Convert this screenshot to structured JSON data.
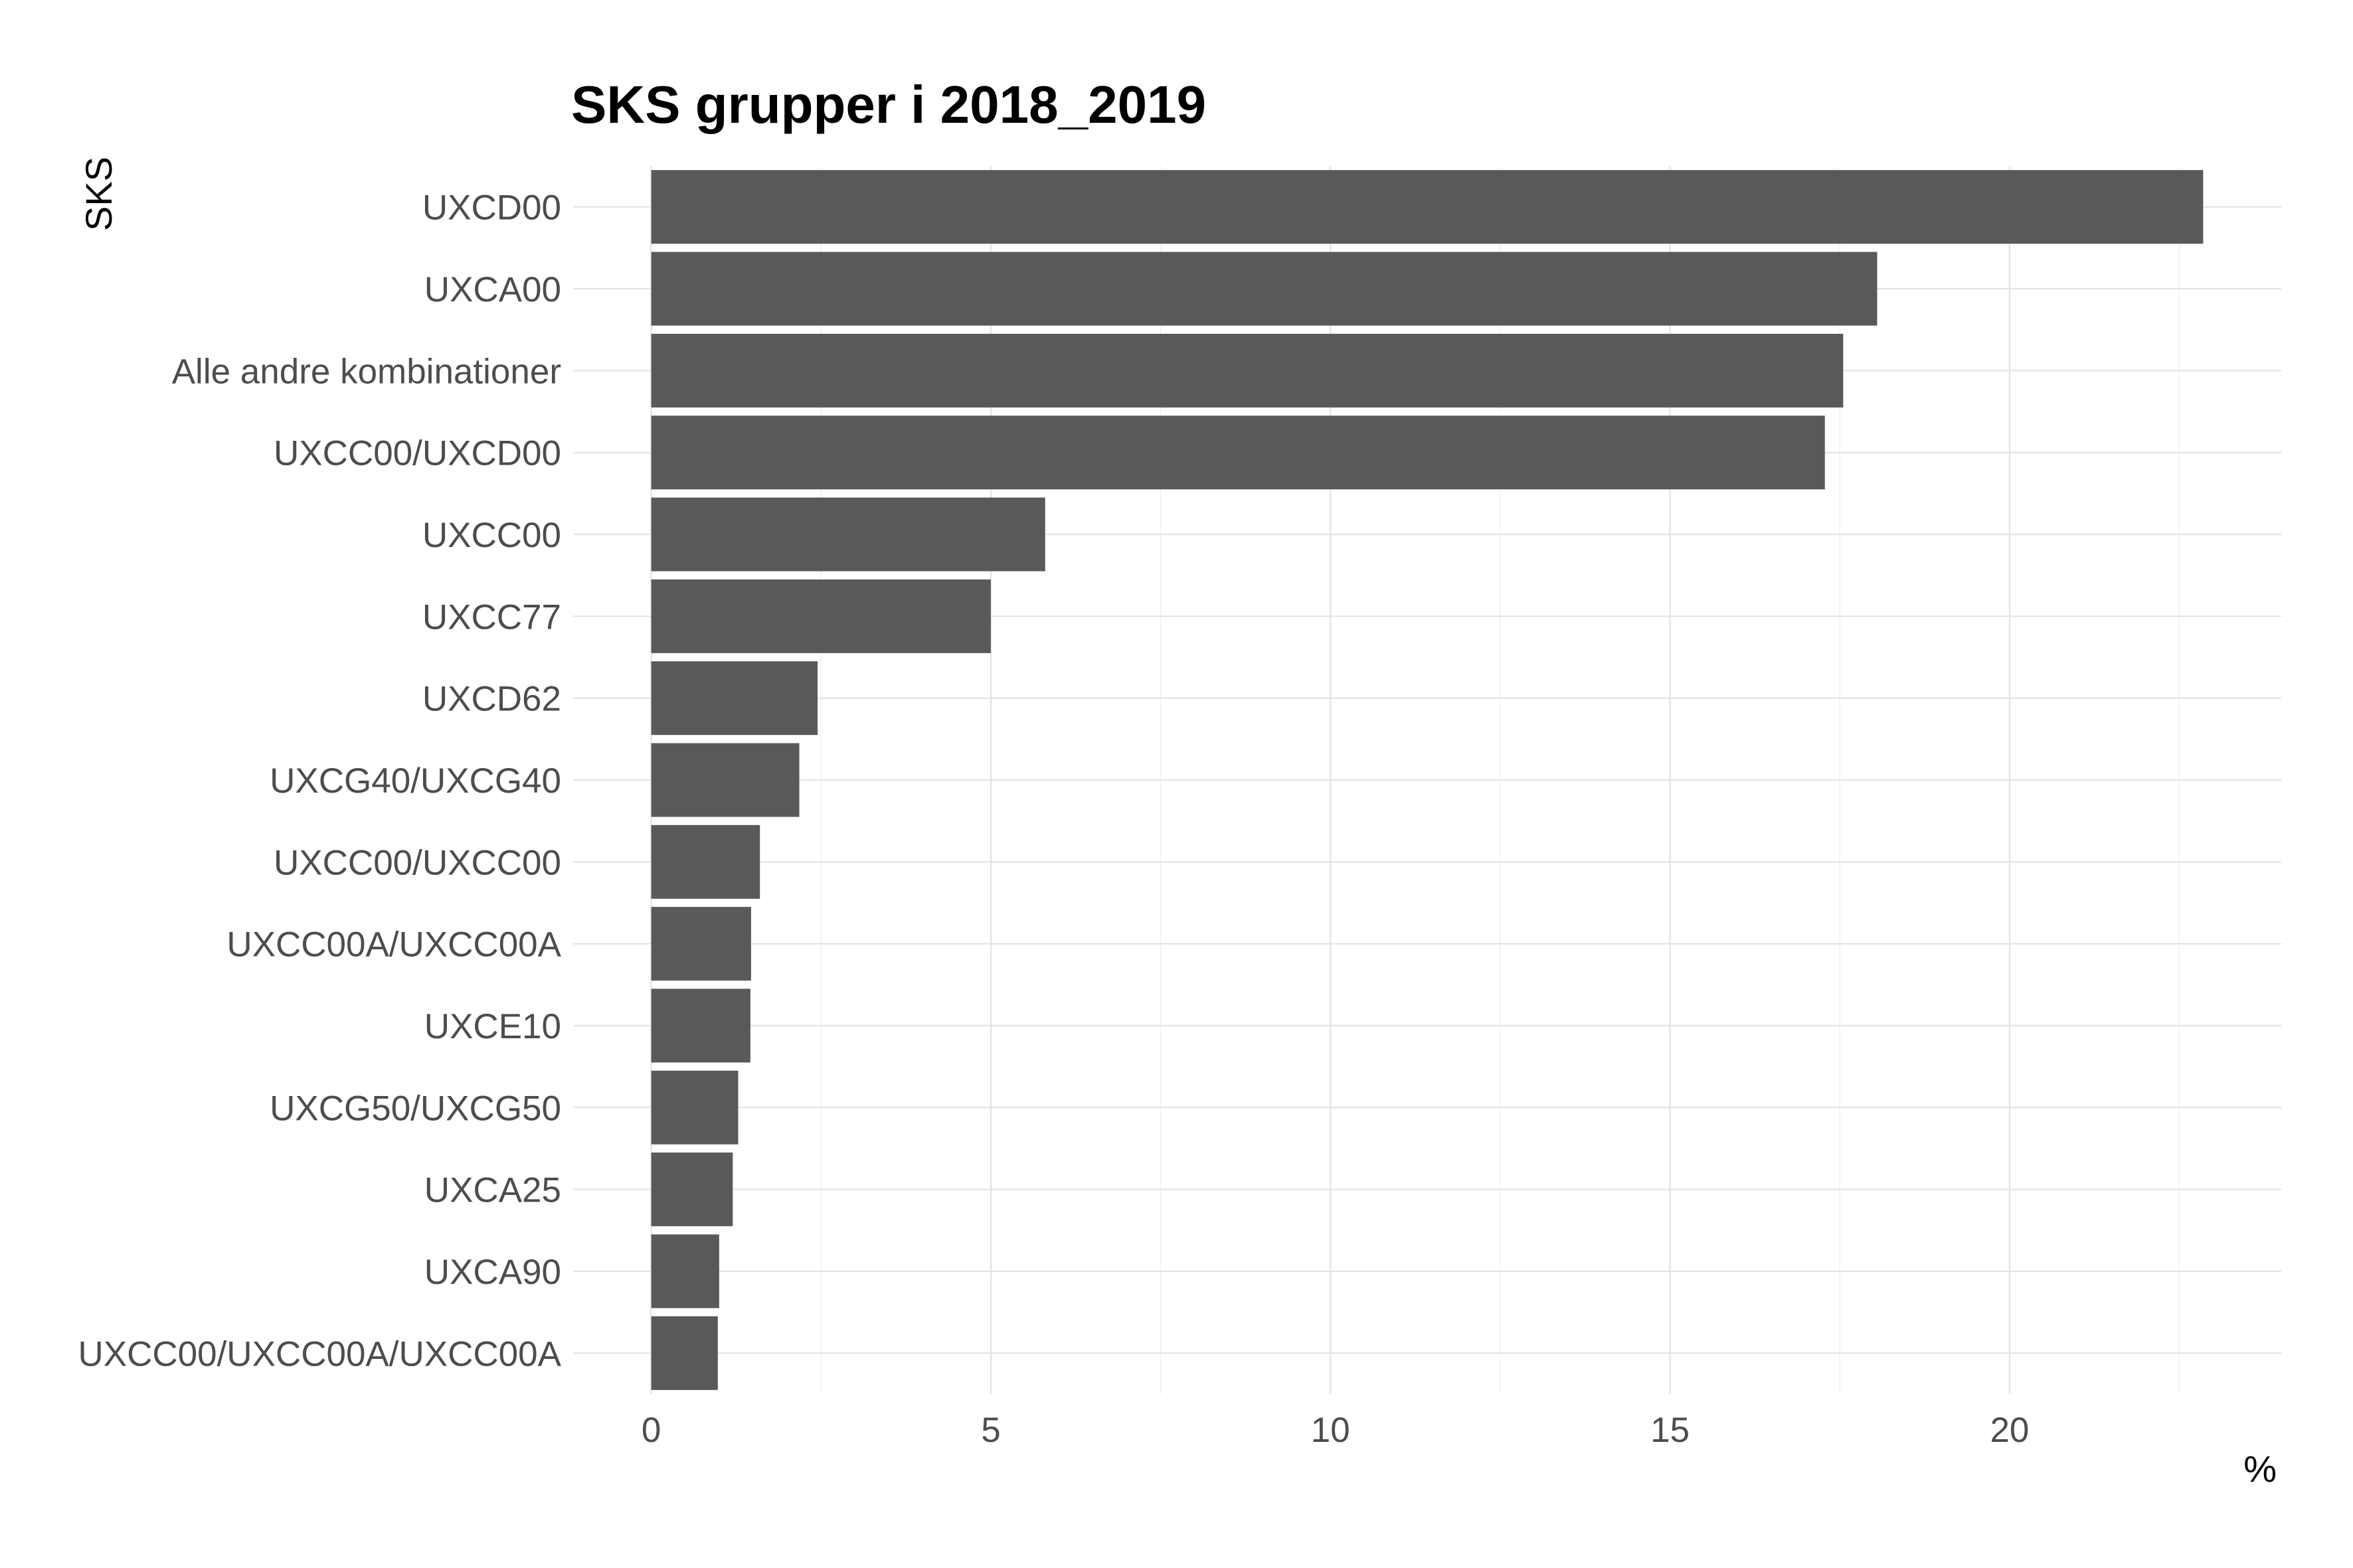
{
  "chart_data": {
    "type": "bar",
    "orientation": "horizontal",
    "title": "SKS grupper i 2018_2019",
    "xlabel": "%",
    "ylabel": "SKS",
    "categories": [
      "UXCD00",
      "UXCA00",
      "Alle andre kombinationer",
      "UXCC00/UXCD00",
      "UXCC00",
      "UXCC77",
      "UXCD62",
      "UXCG40/UXCG40",
      "UXCC00/UXCC00",
      "UXCC00A/UXCC00A",
      "UXCE10",
      "UXCG50/UXCG50",
      "UXCA25",
      "UXCA90",
      "UXCC00/UXCC00A/UXCC00A"
    ],
    "values": [
      22.85,
      18.05,
      17.55,
      17.28,
      5.8,
      5.0,
      2.45,
      2.18,
      1.6,
      1.47,
      1.46,
      1.28,
      1.2,
      1.0,
      0.98
    ],
    "xlim": [
      -1.15,
      24.0
    ],
    "x_ticks": [
      0,
      5,
      10,
      15,
      20
    ],
    "grid": true,
    "bar_color": "#595959",
    "legend": "none"
  }
}
